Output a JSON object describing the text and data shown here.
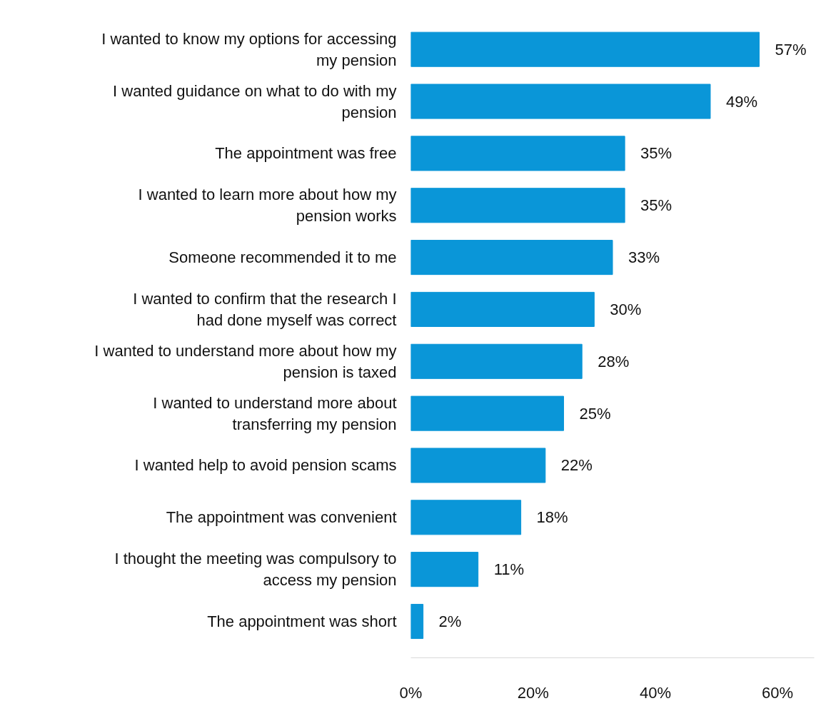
{
  "chart_data": {
    "type": "bar",
    "orientation": "horizontal",
    "categories": [
      "I wanted to know my options for accessing my pension",
      "I wanted guidance on what to do with my pension",
      "The appointment was free",
      "I wanted to learn more about how my pension works",
      "Someone recommended it to me",
      "I wanted to confirm that the research I had done myself was correct",
      "I wanted to understand more about how my pension is taxed",
      "I wanted to understand more about transferring my pension",
      "I wanted help to avoid pension scams",
      "The appointment was convenient",
      "I thought the meeting was compulsory to access my pension",
      "The appointment was short"
    ],
    "values": [
      57,
      49,
      35,
      35,
      33,
      30,
      28,
      25,
      22,
      18,
      11,
      2
    ],
    "value_labels": [
      "57%",
      "49%",
      "35%",
      "35%",
      "33%",
      "30%",
      "28%",
      "25%",
      "22%",
      "18%",
      "11%",
      "2%"
    ],
    "color": "#0a96d8",
    "xlim": [
      0,
      66
    ],
    "xticks": [
      {
        "value": 0,
        "label": "0%"
      },
      {
        "value": 20,
        "label": "20%"
      },
      {
        "value": 40,
        "label": "40%"
      },
      {
        "value": 60,
        "label": "60%"
      }
    ],
    "grid": false
  }
}
